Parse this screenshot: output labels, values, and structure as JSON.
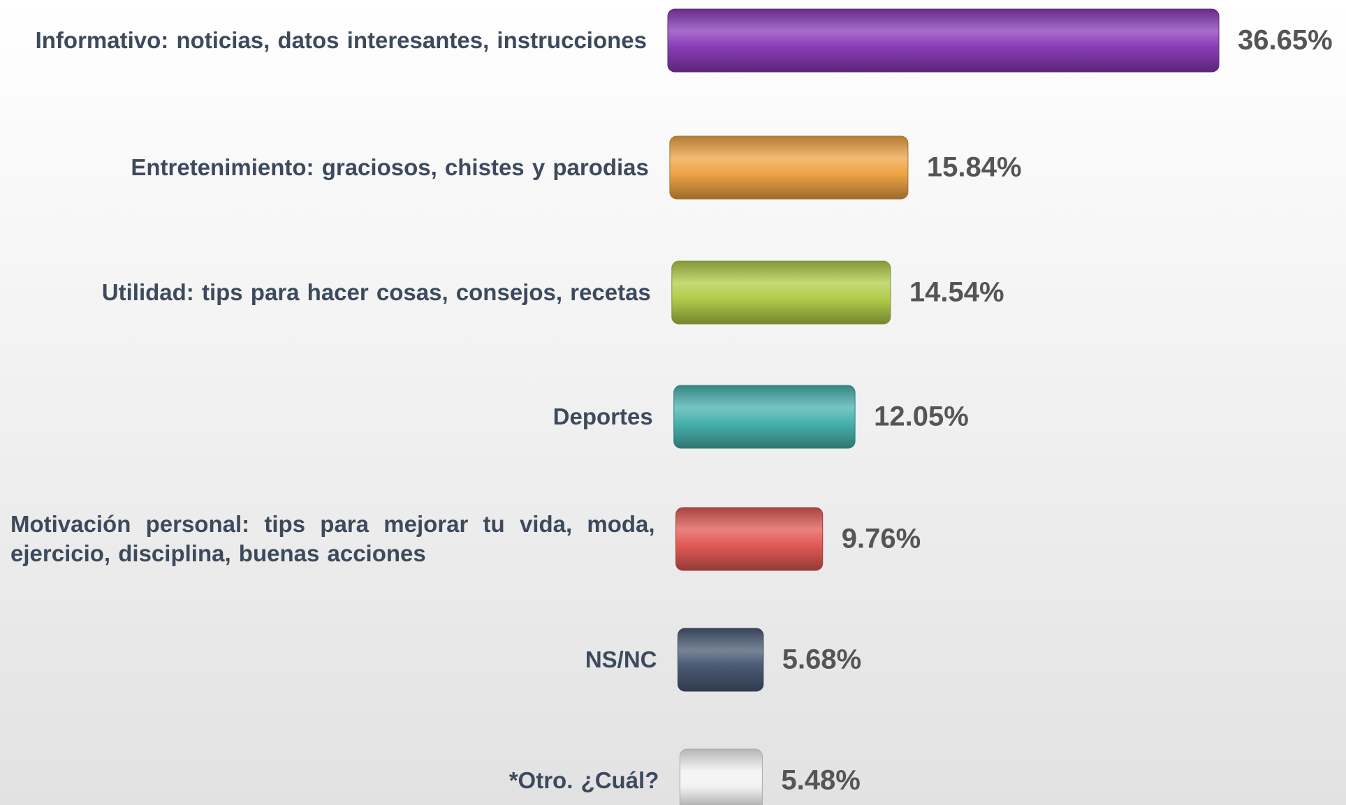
{
  "chart_data": {
    "type": "bar",
    "categories": [
      "Informativo: noticias, datos interesantes, instrucciones",
      "Entretenimiento: graciosos, chistes y parodias",
      "Utilidad: tips para hacer cosas, consejos, recetas",
      "Deportes",
      "Motivación personal: tips para mejorar tu vida, moda, ejercicio, disciplina, buenas acciones",
      "NS/NC",
      "*Otro. ¿Cuál?"
    ],
    "values": [
      36.65,
      15.84,
      14.54,
      12.05,
      9.76,
      5.68,
      5.48
    ],
    "value_labels": [
      "36.65%",
      "15.84%",
      "14.54%",
      "12.05%",
      "9.76%",
      "5.68%",
      "5.48%"
    ],
    "colors": [
      "#8a3cb8",
      "#eea444",
      "#b2cc4a",
      "#48b2ae",
      "#e25a56",
      "#4a5a74",
      "#f2f2f2"
    ]
  }
}
